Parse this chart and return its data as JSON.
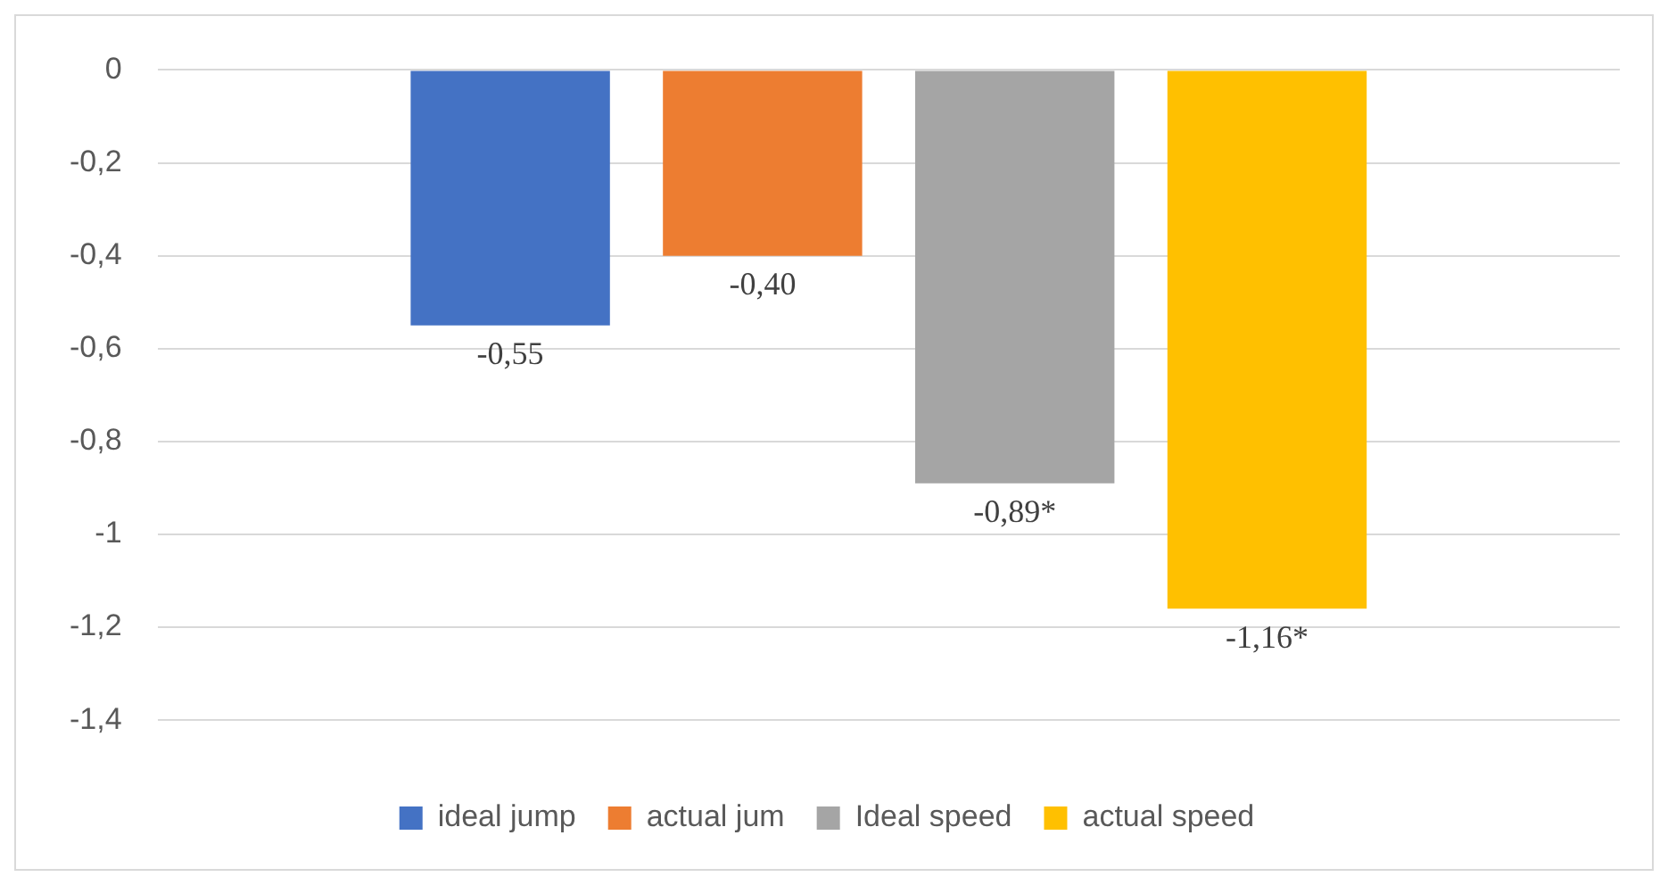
{
  "chart_data": {
    "type": "bar",
    "categories": [
      null
    ],
    "series": [
      {
        "name": "ideal jump",
        "color": "#4472c4",
        "values": [
          -0.55
        ],
        "value_labels": [
          "-0,55"
        ]
      },
      {
        "name": "actual jum",
        "color": "#ed7d31",
        "values": [
          -0.4
        ],
        "value_labels": [
          "-0,40"
        ]
      },
      {
        "name": "Ideal speed",
        "color": "#a5a5a5",
        "values": [
          -0.89
        ],
        "value_labels": [
          "-0,89*"
        ]
      },
      {
        "name": "actual speed",
        "color": "#ffc000",
        "values": [
          -1.16
        ],
        "value_labels": [
          "-1,16*"
        ]
      }
    ],
    "ylim": [
      -1.4,
      0
    ],
    "yticks": [
      {
        "value": 0,
        "label": "0"
      },
      {
        "value": -0.2,
        "label": "-0,2"
      },
      {
        "value": -0.4,
        "label": "-0,4"
      },
      {
        "value": -0.6,
        "label": "-0,6"
      },
      {
        "value": -0.8,
        "label": "-0,8"
      },
      {
        "value": -1,
        "label": "-1"
      },
      {
        "value": -1.2,
        "label": "-1,2"
      },
      {
        "value": -1.4,
        "label": "-1,4"
      }
    ],
    "grid": "y",
    "legend": "bottom"
  }
}
